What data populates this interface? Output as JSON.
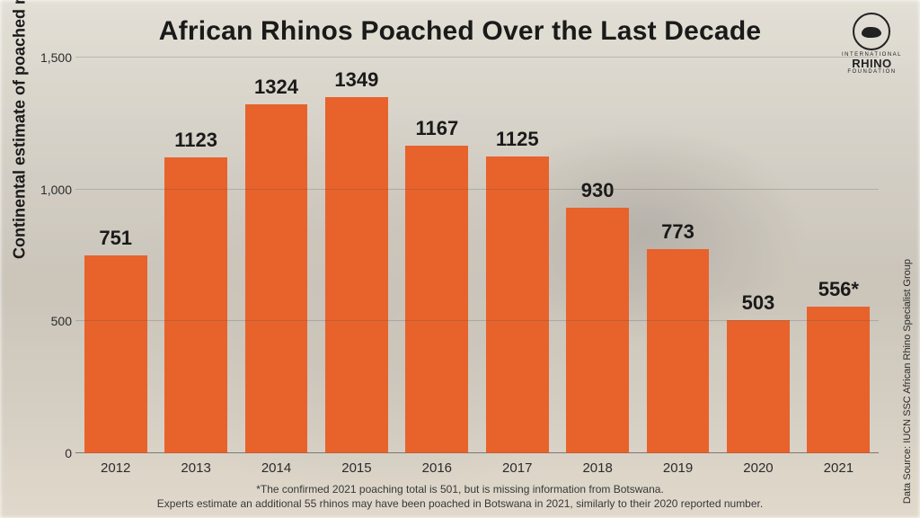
{
  "title": {
    "text": "African Rhinos Poached Over the Last Decade",
    "fontsize": 30,
    "color": "#1a1a1a",
    "weight": 800
  },
  "logo": {
    "line1": "INTERNATIONAL",
    "line2": "RHINO",
    "line3": "FOUNDATION"
  },
  "y_axis": {
    "title": "Continental estimate of poached rhinos",
    "title_fontsize": 18,
    "ylim": [
      0,
      1500
    ],
    "ticks": [
      0,
      500,
      1000,
      1500
    ],
    "tick_labels": [
      "0",
      "500",
      "1,000",
      "1,500"
    ],
    "tick_fontsize": 14,
    "grid_color": "rgba(80,80,80,0.25)"
  },
  "side_source": {
    "text": "Data Source: IUCN SSC African Rhino Specialist Group",
    "fontsize": 11
  },
  "chart": {
    "type": "bar",
    "bar_color": "#e8622c",
    "bar_width": 0.78,
    "categories": [
      "2012",
      "2013",
      "2014",
      "2015",
      "2016",
      "2017",
      "2018",
      "2019",
      "2020",
      "2021"
    ],
    "values": [
      751,
      1123,
      1324,
      1349,
      1167,
      1125,
      930,
      773,
      503,
      556
    ],
    "value_labels": [
      "751",
      "1123",
      "1324",
      "1349",
      "1167",
      "1125",
      "930",
      "773",
      "503",
      "556*"
    ],
    "value_label_fontsize": 22,
    "value_label_color": "#1a1a1a",
    "x_tick_fontsize": 15,
    "background_color": "transparent"
  },
  "footnote": {
    "line1": "*The confirmed 2021 poaching total is 501, but is missing information from Botswana.",
    "line2": "Experts estimate an additional 55 rhinos may have been poached in Botswana in 2021, similarly to their 2020 reported number.",
    "fontsize": 12
  }
}
